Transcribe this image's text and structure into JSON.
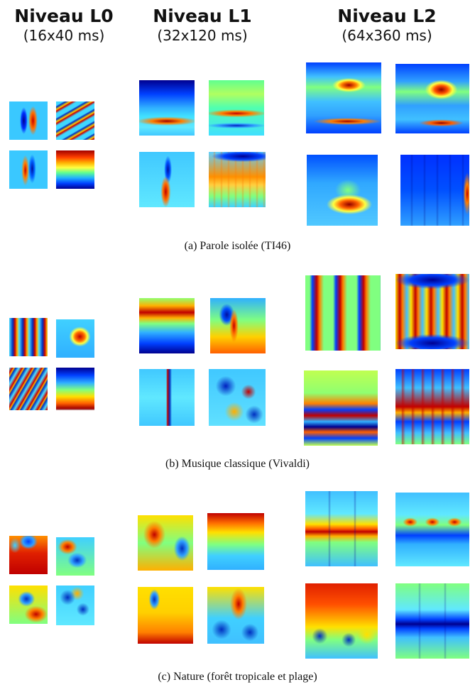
{
  "headers": [
    {
      "title": "Niveau L0",
      "subtitle": "(16x40 ms)"
    },
    {
      "title": "Niveau L1",
      "subtitle": "(32x120 ms)"
    },
    {
      "title": "Niveau L2",
      "subtitle": "(64x360 ms)"
    }
  ],
  "captions": {
    "a": "(a)  Parole isolée (TI46)",
    "b": "(b)  Musique classique (Vivaldi)",
    "c": "(c)  Nature (forêt tropicale et plage)"
  },
  "colors": {
    "dark_blue": "#00008f",
    "blue": "#0050ff",
    "cyan": "#3fd7ff",
    "green": "#80ff80",
    "yellow": "#ffe000",
    "orange": "#ff6a00",
    "red": "#c80000"
  }
}
